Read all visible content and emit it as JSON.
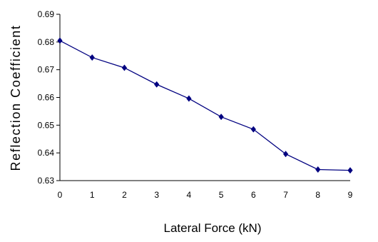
{
  "chart_data": {
    "type": "line",
    "title": "",
    "xlabel": "Lateral Force (kN)",
    "ylabel": "Reflection Coefficient",
    "xlim": [
      0,
      9
    ],
    "ylim": [
      0.63,
      0.69
    ],
    "x_ticks": [
      "0",
      "1",
      "2",
      "3",
      "4",
      "5",
      "6",
      "7",
      "8",
      "9"
    ],
    "y_ticks": [
      "0.63",
      "0.64",
      "0.65",
      "0.66",
      "0.67",
      "0.68",
      "0.69"
    ],
    "y_tick_values": [
      0.63,
      0.64,
      0.65,
      0.66,
      0.67,
      0.68,
      0.69
    ],
    "grid": false,
    "marker": "diamond",
    "series": [
      {
        "color": "#000080",
        "x": [
          0,
          1,
          2,
          3,
          4,
          5,
          6,
          7,
          8,
          9
        ],
        "y": [
          0.6805,
          0.6744,
          0.6707,
          0.6647,
          0.6596,
          0.653,
          0.6485,
          0.6396,
          0.634,
          0.6337
        ]
      }
    ]
  }
}
